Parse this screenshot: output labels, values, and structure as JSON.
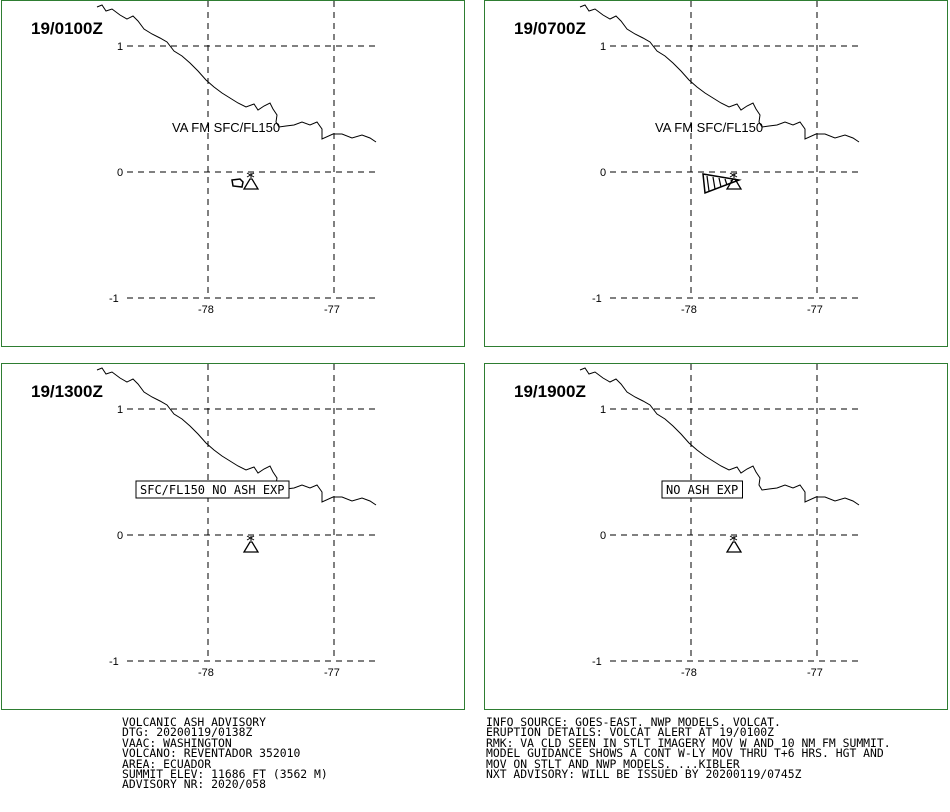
{
  "axes": {
    "lat_labels": [
      "1",
      "0",
      "-1"
    ],
    "lon_labels": [
      "-78",
      "-77"
    ]
  },
  "colors": {
    "frame": "#2e7d32",
    "ink": "#000000"
  },
  "panels": [
    {
      "time": "19/0100Z",
      "label": "VA FM SFC/FL150",
      "label_boxed": false,
      "ash": "small-polygon"
    },
    {
      "time": "19/0700Z",
      "label": "VA FM SFC/FL150",
      "label_boxed": false,
      "ash": "hatched-triangle"
    },
    {
      "time": "19/1300Z",
      "label": "SFC/FL150 NO ASH EXP",
      "label_boxed": true,
      "ash": "none"
    },
    {
      "time": "19/1900Z",
      "label": "NO ASH EXP",
      "label_boxed": true,
      "ash": "none"
    }
  ],
  "advisory_left": [
    "VOLCANIC ASH ADVISORY",
    "DTG: 20200119/0138Z",
    "VAAC: WASHINGTON",
    "VOLCANO: REVENTADOR 352010",
    "AREA: ECUADOR",
    "SUMMIT ELEV: 11686 FT (3562 M)",
    "ADVISORY NR: 2020/058"
  ],
  "advisory_right": [
    "INFO SOURCE: GOES-EAST. NWP MODELS. VOLCAT.",
    "ERUPTION DETAILS: VOLCAT ALERT AT 19/0100Z",
    "RMK: VA CLD SEEN IN STLT IMAGERY MOV W AND 10 NM FM SUMMIT.",
    "MODEL GUIDANCE SHOWS A CONT W-LY MOV THRU T+6 HRS. HGT AND",
    "MOV ON STLT AND NWP MODELS. ...KIBLER",
    "NXT ADVISORY: WILL BE ISSUED BY 20200119/0745Z"
  ],
  "icons": {
    "volcano": "volcano-icon"
  }
}
